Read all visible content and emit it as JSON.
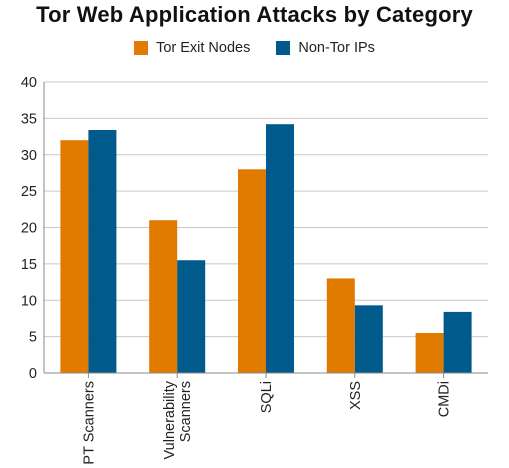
{
  "chart_data": {
    "type": "bar",
    "title": "Tor Web Application Attacks by Category",
    "xlabel": "",
    "ylabel": "",
    "categories": [
      [
        "PT Scanners"
      ],
      [
        "Vulnerability",
        "Scanners"
      ],
      [
        "SQLi"
      ],
      [
        "XSS"
      ],
      [
        "CMDi"
      ]
    ],
    "series": [
      {
        "name": "Tor Exit Nodes",
        "color": "#E07B00",
        "values": [
          32,
          21,
          28,
          13,
          5.5
        ]
      },
      {
        "name": "Non-Tor IPs",
        "color": "#005A8C",
        "values": [
          33.4,
          15.5,
          34.2,
          9.3,
          8.4
        ]
      }
    ],
    "ylim": [
      0,
      40
    ],
    "yticks": [
      0,
      5,
      10,
      15,
      20,
      25,
      30,
      35,
      40
    ],
    "grid": true,
    "legend_position": "top-center"
  }
}
